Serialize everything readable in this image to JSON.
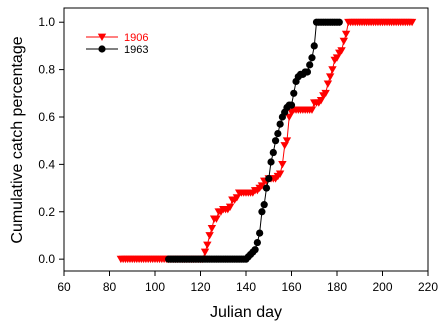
{
  "chart_data": {
    "type": "line",
    "xlabel": "Julian day",
    "ylabel": "Cumulative catch percentage",
    "xlim": [
      60,
      220
    ],
    "ylim": [
      -0.05,
      1.06
    ],
    "xticks": [
      60,
      80,
      100,
      120,
      140,
      160,
      180,
      200,
      220
    ],
    "yticks": [
      0.0,
      0.2,
      0.4,
      0.6,
      0.8,
      1.0
    ],
    "ytick_labels": [
      "0.0",
      "0.2",
      "0.4",
      "0.6",
      "0.8",
      "1.0"
    ],
    "grid": false,
    "legend_position": "top-left",
    "series": [
      {
        "name": "1906",
        "color": "#ff0000",
        "marker": "triangle-down",
        "x": [
          85,
          86,
          87,
          88,
          89,
          90,
          91,
          92,
          93,
          94,
          95,
          96,
          97,
          98,
          99,
          100,
          101,
          102,
          103,
          104,
          105,
          106,
          107,
          108,
          109,
          110,
          111,
          112,
          113,
          114,
          115,
          116,
          117,
          118,
          119,
          120,
          121,
          122,
          123,
          124,
          125,
          126,
          127,
          128,
          129,
          130,
          131,
          132,
          133,
          134,
          135,
          136,
          137,
          138,
          139,
          140,
          141,
          142,
          143,
          144,
          145,
          146,
          147,
          148,
          149,
          150,
          151,
          152,
          153,
          154,
          155,
          156,
          157,
          158,
          159,
          160,
          161,
          162,
          163,
          164,
          165,
          166,
          167,
          168,
          169,
          170,
          171,
          172,
          173,
          174,
          175,
          176,
          177,
          178,
          179,
          180,
          181,
          182,
          183,
          184,
          185,
          186,
          187,
          188,
          189,
          190,
          191,
          192,
          193,
          194,
          195,
          196,
          197,
          198,
          199,
          200,
          201,
          202,
          203,
          204,
          205,
          206,
          207,
          208,
          209,
          210,
          211,
          212,
          213
        ],
        "y": [
          0,
          0,
          0,
          0,
          0,
          0,
          0,
          0,
          0,
          0,
          0,
          0,
          0,
          0,
          0,
          0,
          0,
          0,
          0,
          0,
          0,
          0,
          0,
          0,
          0,
          0,
          0,
          0,
          0,
          0,
          0,
          0,
          0,
          0,
          0,
          0,
          0,
          0.03,
          0.06,
          0.1,
          0.13,
          0.17,
          0.17,
          0.2,
          0.2,
          0.21,
          0.21,
          0.21,
          0.22,
          0.25,
          0.25,
          0.26,
          0.28,
          0.28,
          0.28,
          0.28,
          0.28,
          0.28,
          0.28,
          0.29,
          0.29,
          0.3,
          0.31,
          0.33,
          0.33,
          0.34,
          0.34,
          0.34,
          0.34,
          0.35,
          0.36,
          0.4,
          0.48,
          0.5,
          0.6,
          0.62,
          0.63,
          0.63,
          0.63,
          0.63,
          0.63,
          0.63,
          0.63,
          0.63,
          0.63,
          0.66,
          0.66,
          0.66,
          0.67,
          0.69,
          0.7,
          0.74,
          0.77,
          0.8,
          0.84,
          0.85,
          0.87,
          0.88,
          0.92,
          0.95,
          1,
          1,
          1,
          1,
          1,
          1,
          1,
          1,
          1,
          1,
          1,
          1,
          1,
          1,
          1,
          1,
          1,
          1,
          1,
          1,
          1,
          1,
          1,
          1,
          1,
          1,
          1,
          1,
          1
        ]
      },
      {
        "name": "1963",
        "color": "#000000",
        "marker": "circle",
        "x": [
          106,
          107,
          108,
          109,
          110,
          111,
          112,
          113,
          114,
          115,
          116,
          117,
          118,
          119,
          120,
          121,
          122,
          123,
          124,
          125,
          126,
          127,
          128,
          129,
          130,
          131,
          132,
          133,
          134,
          135,
          136,
          137,
          138,
          139,
          140,
          141,
          142,
          143,
          144,
          145,
          146,
          147,
          148,
          149,
          150,
          151,
          152,
          153,
          154,
          155,
          156,
          157,
          158,
          159,
          160,
          161,
          162,
          163,
          164,
          165,
          166,
          167,
          168,
          169,
          170,
          171,
          172,
          173,
          174,
          175,
          176,
          177,
          178,
          179,
          180,
          181
        ],
        "y": [
          0,
          0,
          0,
          0,
          0,
          0,
          0,
          0,
          0,
          0,
          0,
          0,
          0,
          0,
          0,
          0,
          0,
          0,
          0,
          0,
          0,
          0,
          0,
          0,
          0,
          0,
          0,
          0,
          0,
          0,
          0,
          0,
          0,
          0,
          0,
          0.01,
          0.02,
          0.03,
          0.04,
          0.07,
          0.11,
          0.2,
          0.23,
          0.3,
          0.34,
          0.41,
          0.45,
          0.5,
          0.53,
          0.57,
          0.6,
          0.62,
          0.64,
          0.65,
          0.65,
          0.7,
          0.75,
          0.77,
          0.78,
          0.78,
          0.79,
          0.79,
          0.82,
          0.85,
          0.9,
          1,
          1,
          1,
          1,
          1,
          1,
          1,
          1,
          1,
          1,
          1
        ]
      }
    ]
  }
}
